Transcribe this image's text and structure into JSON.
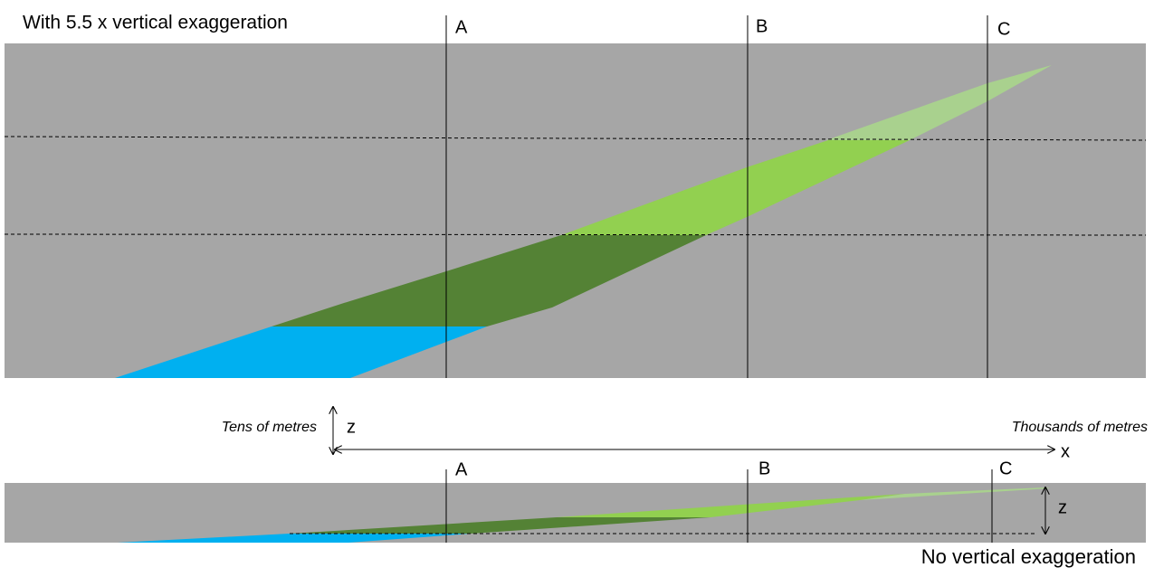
{
  "header": {
    "title": "With 5.5 x vertical exaggeration"
  },
  "top_panel": {
    "sections": [
      "A",
      "B",
      "C"
    ]
  },
  "axes": {
    "z_label": "Tens of metres",
    "z_symbol": "z",
    "x_label": "Thousands of metres",
    "x_symbol": "x"
  },
  "bottom_panel": {
    "sections": [
      "A",
      "B",
      "C"
    ],
    "z_symbol": "z",
    "caption": "No vertical exaggeration"
  }
}
